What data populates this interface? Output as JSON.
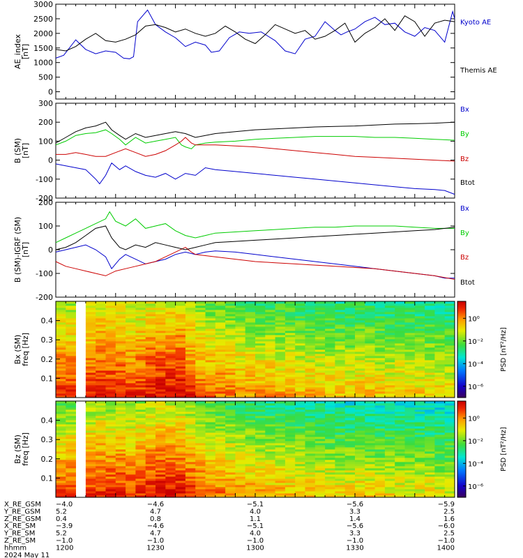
{
  "chart_data": [
    {
      "type": "line",
      "ylabel": "AE_index\n[nT]",
      "ylim": [
        -250,
        3000
      ],
      "yticks": [
        0,
        500,
        1000,
        1500,
        2000,
        2500,
        3000
      ],
      "xlim": [
        1200,
        1400
      ],
      "grid": false,
      "legend": "right",
      "series": [
        {
          "name": "Kyoto AE",
          "color": "#0000cc",
          "x": [
            1200,
            1204,
            1210,
            1215,
            1220,
            1225,
            1230,
            1234,
            1237,
            1239,
            1241,
            1246,
            1250,
            1255,
            1260,
            1265,
            1270,
            1275,
            1278,
            1282,
            1287,
            1292,
            1297,
            1303,
            1310,
            1315,
            1320,
            1325,
            1330,
            1335,
            1340,
            1343,
            1346,
            1350,
            1355,
            1360,
            1365,
            1370,
            1375,
            1380,
            1385,
            1390,
            1395,
            1399,
            1400
          ],
          "y": [
            1150,
            1250,
            1780,
            1450,
            1300,
            1400,
            1350,
            1150,
            1130,
            1200,
            2400,
            2800,
            2300,
            2050,
            1850,
            1550,
            1700,
            1600,
            1350,
            1400,
            1850,
            2050,
            2000,
            2050,
            1750,
            1400,
            1300,
            1800,
            1900,
            2400,
            2100,
            1950,
            2050,
            2150,
            2400,
            2550,
            2300,
            2350,
            2050,
            1900,
            2200,
            2100,
            1700,
            2750,
            2500
          ]
        },
        {
          "name": "Themis AE",
          "color": "#000000",
          "x": [
            1200,
            1205,
            1210,
            1215,
            1220,
            1225,
            1230,
            1235,
            1240,
            1245,
            1250,
            1255,
            1260,
            1265,
            1270,
            1275,
            1280,
            1285,
            1290,
            1295,
            1300,
            1305,
            1310,
            1315,
            1320,
            1325,
            1330,
            1335,
            1340,
            1345,
            1350,
            1355,
            1360,
            1365,
            1370,
            1375,
            1380,
            1385,
            1390,
            1395,
            1400
          ],
          "y": [
            1450,
            1400,
            1550,
            1800,
            2000,
            1750,
            1700,
            1800,
            1950,
            2250,
            2300,
            2200,
            2050,
            2150,
            2000,
            1900,
            2000,
            2250,
            2050,
            1800,
            1650,
            1950,
            2300,
            2150,
            2000,
            2100,
            1800,
            1900,
            2100,
            2350,
            1700,
            2000,
            2200,
            2500,
            2100,
            2600,
            2400,
            1900,
            2350,
            2450,
            2400
          ]
        }
      ]
    },
    {
      "type": "line",
      "ylabel": "B (SM)\n[nT]",
      "ylim": [
        -200,
        300
      ],
      "yticks": [
        -200,
        -100,
        0,
        100,
        200,
        300
      ],
      "xlim": [
        1200,
        1400
      ],
      "grid": false,
      "legend": "right",
      "series": [
        {
          "name": "Bx",
          "color": "#0000cc",
          "x": [
            1200,
            1205,
            1210,
            1215,
            1220,
            1222,
            1225,
            1228,
            1232,
            1235,
            1240,
            1245,
            1250,
            1255,
            1260,
            1265,
            1270,
            1275,
            1280,
            1290,
            1300,
            1310,
            1320,
            1330,
            1340,
            1350,
            1360,
            1370,
            1380,
            1390,
            1395,
            1400
          ],
          "y": [
            -20,
            -30,
            -40,
            -50,
            -100,
            -125,
            -80,
            -15,
            -50,
            -30,
            -60,
            -80,
            -90,
            -70,
            -100,
            -70,
            -80,
            -40,
            -50,
            -60,
            -70,
            -80,
            -90,
            -100,
            -110,
            -120,
            -130,
            -140,
            -150,
            -155,
            -160,
            -180
          ]
        },
        {
          "name": "By",
          "color": "#00cc00",
          "x": [
            1200,
            1205,
            1210,
            1215,
            1220,
            1225,
            1228,
            1232,
            1235,
            1240,
            1245,
            1250,
            1255,
            1260,
            1263,
            1265,
            1268,
            1270,
            1275,
            1280,
            1290,
            1300,
            1310,
            1320,
            1330,
            1340,
            1350,
            1360,
            1370,
            1380,
            1390,
            1400
          ],
          "y": [
            80,
            100,
            130,
            140,
            145,
            160,
            140,
            110,
            80,
            120,
            90,
            100,
            110,
            120,
            80,
            70,
            60,
            80,
            90,
            95,
            100,
            110,
            115,
            120,
            125,
            125,
            125,
            120,
            120,
            115,
            110,
            105
          ]
        },
        {
          "name": "Bz",
          "color": "#cc0000",
          "x": [
            1200,
            1205,
            1210,
            1215,
            1220,
            1225,
            1230,
            1235,
            1240,
            1245,
            1250,
            1255,
            1260,
            1263,
            1265,
            1268,
            1270,
            1280,
            1290,
            1300,
            1310,
            1320,
            1330,
            1340,
            1350,
            1360,
            1370,
            1380,
            1390,
            1400
          ],
          "y": [
            30,
            30,
            40,
            30,
            20,
            20,
            40,
            60,
            40,
            20,
            30,
            50,
            80,
            100,
            120,
            90,
            80,
            80,
            75,
            70,
            60,
            50,
            40,
            30,
            20,
            15,
            10,
            5,
            0,
            -5
          ]
        },
        {
          "name": "Btot",
          "color": "#000000",
          "x": [
            1200,
            1205,
            1210,
            1215,
            1220,
            1225,
            1228,
            1232,
            1235,
            1240,
            1245,
            1250,
            1255,
            1260,
            1265,
            1270,
            1275,
            1280,
            1290,
            1300,
            1310,
            1320,
            1330,
            1340,
            1350,
            1360,
            1370,
            1380,
            1390,
            1400
          ],
          "y": [
            90,
            120,
            150,
            170,
            180,
            200,
            160,
            130,
            110,
            140,
            120,
            130,
            140,
            150,
            140,
            120,
            130,
            140,
            150,
            160,
            165,
            170,
            175,
            178,
            180,
            185,
            190,
            192,
            195,
            200
          ]
        }
      ]
    },
    {
      "type": "line",
      "ylabel": "B (SM)-IGRF (SM)\n[nT]",
      "ylim": [
        -200,
        200
      ],
      "yticks": [
        -200,
        -100,
        0,
        100,
        200
      ],
      "xlim": [
        1200,
        1400
      ],
      "grid": false,
      "legend": "right",
      "series": [
        {
          "name": "Bx",
          "color": "#0000cc",
          "x": [
            1200,
            1205,
            1210,
            1215,
            1220,
            1225,
            1228,
            1232,
            1235,
            1240,
            1245,
            1250,
            1255,
            1260,
            1265,
            1270,
            1275,
            1280,
            1290,
            1300,
            1310,
            1320,
            1330,
            1340,
            1350,
            1360,
            1370,
            1380,
            1390,
            1395,
            1400
          ],
          "y": [
            -10,
            0,
            10,
            20,
            0,
            -30,
            -80,
            -40,
            -20,
            -40,
            -60,
            -50,
            -40,
            -20,
            -10,
            -20,
            -10,
            -5,
            -10,
            -20,
            -30,
            -40,
            -50,
            -60,
            -70,
            -80,
            -90,
            -100,
            -110,
            -120,
            -120
          ]
        },
        {
          "name": "By",
          "color": "#00cc00",
          "x": [
            1200,
            1205,
            1210,
            1215,
            1220,
            1225,
            1227,
            1230,
            1235,
            1240,
            1245,
            1250,
            1255,
            1260,
            1265,
            1270,
            1275,
            1280,
            1290,
            1300,
            1310,
            1320,
            1330,
            1340,
            1350,
            1360,
            1370,
            1380,
            1390,
            1400
          ],
          "y": [
            30,
            50,
            70,
            90,
            110,
            130,
            160,
            120,
            100,
            130,
            90,
            100,
            110,
            80,
            60,
            50,
            60,
            70,
            75,
            80,
            85,
            90,
            95,
            95,
            100,
            100,
            100,
            95,
            90,
            90
          ]
        },
        {
          "name": "Bz",
          "color": "#cc0000",
          "x": [
            1200,
            1205,
            1210,
            1215,
            1220,
            1225,
            1230,
            1235,
            1240,
            1245,
            1250,
            1255,
            1260,
            1265,
            1268,
            1270,
            1280,
            1290,
            1300,
            1310,
            1320,
            1330,
            1340,
            1350,
            1360,
            1370,
            1380,
            1390,
            1400
          ],
          "y": [
            -50,
            -70,
            -80,
            -90,
            -100,
            -110,
            -90,
            -80,
            -70,
            -60,
            -50,
            -30,
            -10,
            10,
            -10,
            -20,
            -30,
            -40,
            -50,
            -55,
            -60,
            -65,
            -70,
            -75,
            -80,
            -90,
            -100,
            -110,
            -125
          ]
        },
        {
          "name": "Btot",
          "color": "#000000",
          "x": [
            1200,
            1205,
            1210,
            1215,
            1220,
            1225,
            1228,
            1232,
            1235,
            1240,
            1245,
            1250,
            1255,
            1260,
            1265,
            1270,
            1275,
            1280,
            1290,
            1300,
            1310,
            1320,
            1330,
            1340,
            1350,
            1360,
            1370,
            1380,
            1390,
            1400
          ],
          "y": [
            0,
            10,
            30,
            60,
            90,
            100,
            50,
            10,
            0,
            20,
            10,
            30,
            20,
            10,
            0,
            10,
            20,
            30,
            35,
            40,
            45,
            50,
            55,
            60,
            65,
            70,
            75,
            80,
            85,
            95
          ]
        }
      ]
    },
    {
      "type": "heatmap",
      "ylabel": "Bx (SM)\nfreq [Hz]",
      "ylim": [
        0,
        0.5
      ],
      "yticks": [
        0.1,
        0.2,
        0.3,
        0.4
      ],
      "xlim": [
        1200,
        1400
      ],
      "gap": [
        1205,
        1209
      ],
      "colorbar": {
        "label": "PSD [nT²/Hz]",
        "ticks": [
          "10⁰",
          "10⁻²",
          "10⁻⁴",
          "10⁻⁶"
        ],
        "tick_exponents": [
          0,
          -2,
          -4,
          -6
        ],
        "range_exponents": [
          -7,
          1.5
        ]
      },
      "columns_x": [
        1200,
        1205,
        1210,
        1215,
        1220,
        1225,
        1230,
        1235,
        1240,
        1245,
        1250,
        1255,
        1260,
        1265,
        1270,
        1275,
        1280,
        1285,
        1290,
        1295,
        1300,
        1305,
        1310,
        1315,
        1320,
        1325,
        1330,
        1335,
        1340,
        1345,
        1350,
        1355,
        1360,
        1365,
        1370,
        1375,
        1380,
        1385,
        1390,
        1395
      ],
      "column_log_psd_at_0_05Hz": [
        0.6,
        0.6,
        null,
        0.8,
        1.0,
        0.9,
        0.9,
        0.7,
        0.8,
        1.0,
        1.1,
        1.1,
        1.2,
        0.7,
        0.3,
        0.2,
        0.1,
        0.0,
        -0.1,
        -0.2,
        -0.3,
        -0.3,
        -0.4,
        -0.4,
        -0.5,
        -0.5,
        -0.6,
        -0.6,
        -0.7,
        -0.7,
        -0.6,
        -0.6,
        -0.7,
        -0.8,
        -0.7,
        -0.7,
        -0.8,
        -0.8,
        -0.8,
        -0.9
      ],
      "log_psd_decrease_per_0_1Hz": 0.5
    },
    {
      "type": "heatmap",
      "ylabel": "Bz (SM)\nfreq [Hz]",
      "ylim": [
        0,
        0.5
      ],
      "yticks": [
        0.1,
        0.2,
        0.3,
        0.4
      ],
      "xlim": [
        1200,
        1400
      ],
      "gap": [
        1205,
        1209
      ],
      "colorbar": {
        "label": "PSD [nT²/Hz]",
        "ticks": [
          "10⁰",
          "10⁻²",
          "10⁻⁴",
          "10⁻⁶"
        ],
        "tick_exponents": [
          0,
          -2,
          -4,
          -6
        ],
        "range_exponents": [
          -7,
          1.5
        ]
      },
      "columns_x": [
        1200,
        1205,
        1210,
        1215,
        1220,
        1225,
        1230,
        1235,
        1240,
        1245,
        1250,
        1255,
        1260,
        1265,
        1270,
        1275,
        1280,
        1285,
        1290,
        1295,
        1300,
        1305,
        1310,
        1315,
        1320,
        1325,
        1330,
        1335,
        1340,
        1345,
        1350,
        1355,
        1360,
        1365,
        1370,
        1375,
        1380,
        1385,
        1390,
        1395
      ],
      "column_log_psd_at_0_05Hz": [
        0.4,
        0.4,
        null,
        0.6,
        0.8,
        0.7,
        0.7,
        0.6,
        0.7,
        0.9,
        1.0,
        1.0,
        1.0,
        0.6,
        0.3,
        0.1,
        0.0,
        -0.1,
        -0.2,
        -0.3,
        -0.4,
        -0.5,
        -0.5,
        -0.6,
        -0.7,
        -0.7,
        -0.8,
        -0.8,
        -0.9,
        -0.9,
        -0.8,
        -0.9,
        -1.0,
        -1.0,
        -1.0,
        -1.1,
        -1.1,
        -1.1,
        -1.2,
        -1.2
      ],
      "log_psd_decrease_per_0_1Hz": 0.55
    }
  ],
  "orbit_table": {
    "rows": [
      {
        "label": "X_RE_GSM",
        "values": [
          "−4.0",
          "−4.6",
          "−5.1",
          "−5.6",
          "−5.9"
        ]
      },
      {
        "label": "Y_RE_GSM",
        "values": [
          "5.2",
          "4.7",
          "4.0",
          "3.3",
          "2.5"
        ]
      },
      {
        "label": "Z_RE_GSM",
        "values": [
          "0.4",
          "0.8",
          "1.1",
          "1.4",
          "1.6"
        ]
      },
      {
        "label": "X_RE_SM",
        "values": [
          "−3.9",
          "−4.6",
          "−5.1",
          "−5.6",
          "−6.0"
        ]
      },
      {
        "label": "Y_RE_SM",
        "values": [
          "5.2",
          "4.7",
          "4.0",
          "3.3",
          "2.5"
        ]
      },
      {
        "label": "Z_RE_SM",
        "values": [
          "−1.0",
          "−1.0",
          "−1.0",
          "−1.0",
          "−1.0"
        ]
      },
      {
        "label": "hhmm",
        "values": [
          "1200",
          "1230",
          "1300",
          "1330",
          "1400"
        ]
      }
    ],
    "date": "2024 May 11"
  },
  "colors": {
    "blue": "#0000cc",
    "green": "#00cc00",
    "red": "#cc0000",
    "black": "#000000"
  }
}
